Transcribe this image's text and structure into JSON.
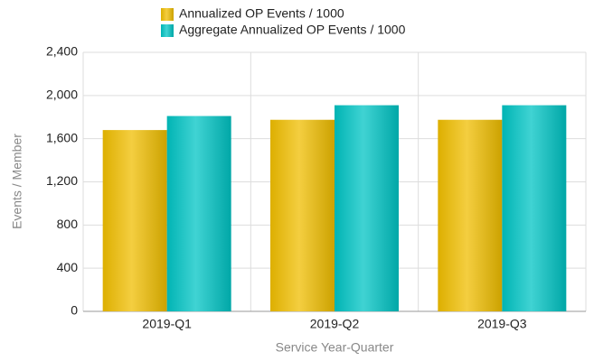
{
  "chart_data": {
    "type": "bar",
    "x_label": "Service Year-Quarter",
    "y_label": "Events / Member",
    "categories": [
      "2019-Q1",
      "2019-Q2",
      "2019-Q3"
    ],
    "series": [
      {
        "name": "Annualized OP Events / 1000",
        "color": "#f0be00",
        "values": [
          1680,
          1775,
          1775
        ]
      },
      {
        "name": "Aggregate Annualized OP Events / 1000",
        "color": "#00c4c4",
        "values": [
          1810,
          1910,
          1910
        ]
      }
    ],
    "ylim": [
      0,
      2400
    ],
    "yticks": [
      0,
      400,
      800,
      {
        "value": 1200,
        "label": "1,200"
      },
      {
        "value": 1600,
        "label": "1,600"
      },
      {
        "value": 2000,
        "label": "2,000"
      },
      {
        "value": 2400,
        "label": "2,400"
      }
    ],
    "grid": true
  }
}
